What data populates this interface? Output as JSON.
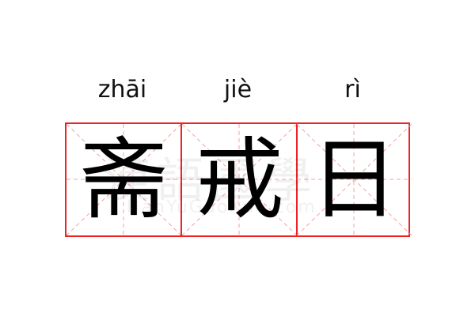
{
  "entries": [
    {
      "pinyin": "zhāi",
      "char": "斋"
    },
    {
      "pinyin": "jiè",
      "char": "戒"
    },
    {
      "pinyin": "rì",
      "char": "日"
    }
  ],
  "watermark": {
    "cn": "漢語國學",
    "en": "HanYuGuoXue.com"
  },
  "colors": {
    "border": "#ee2222",
    "guide": "#f4a0a0",
    "text": "#000000"
  }
}
